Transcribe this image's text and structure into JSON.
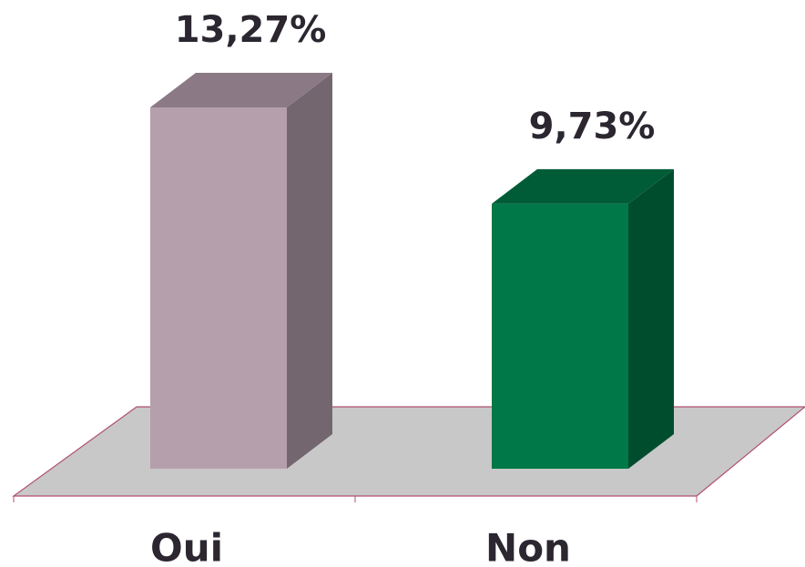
{
  "chart_data": {
    "type": "bar3d",
    "categories": [
      "Oui",
      "Non"
    ],
    "values": [
      13.27,
      9.73
    ],
    "value_labels": [
      "13,27%",
      "9,73%"
    ],
    "colors": [
      "#b59fad",
      "#007848"
    ]
  }
}
